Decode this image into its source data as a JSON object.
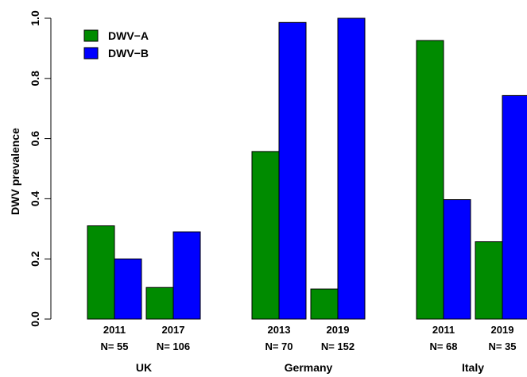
{
  "chart_data": {
    "type": "bar",
    "ylabel": "DWV prevalence",
    "ylim": [
      0,
      1
    ],
    "yticks": [
      "0.0",
      "0.2",
      "0.4",
      "0.6",
      "0.8",
      "1.0"
    ],
    "legend_position": "top-left",
    "series": [
      {
        "name": "DWV−A",
        "color": "#008B00"
      },
      {
        "name": "DWV−B",
        "color": "#0000FF"
      }
    ],
    "groups": [
      {
        "country": "UK",
        "bars": [
          {
            "year": "2011",
            "n": "N= 55",
            "values": [
              0.31,
              0.2
            ]
          },
          {
            "year": "2017",
            "n": "N= 106",
            "values": [
              0.105,
              0.29
            ]
          }
        ]
      },
      {
        "country": "Germany",
        "bars": [
          {
            "year": "2013",
            "n": "N= 70",
            "values": [
              0.557,
              0.986
            ]
          },
          {
            "year": "2019",
            "n": "N= 152",
            "values": [
              0.1,
              1.0
            ]
          }
        ]
      },
      {
        "country": "Italy",
        "bars": [
          {
            "year": "2011",
            "n": "N= 68",
            "values": [
              0.926,
              0.397
            ]
          },
          {
            "year": "2019",
            "n": "N= 35",
            "values": [
              0.257,
              0.743
            ]
          }
        ]
      }
    ]
  }
}
